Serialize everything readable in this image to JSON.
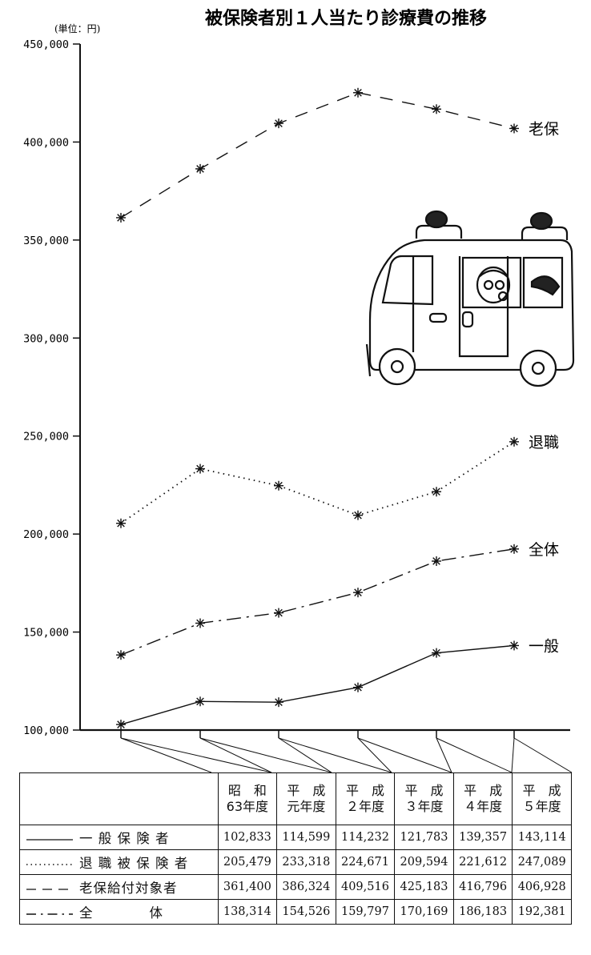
{
  "chart_data": {
    "type": "line",
    "title": "被保険者別１人当たり診療費の推移",
    "unit": "(単位：円)",
    "categories": [
      "昭　和\n63年度",
      "平　成\n元年度",
      "平　成\n２年度",
      "平　成\n３年度",
      "平　成\n４年度",
      "平　成\n５年度"
    ],
    "ylim": [
      100000,
      450000
    ],
    "yticks": [
      "100,000",
      "150,000",
      "200,000",
      "250,000",
      "300,000",
      "350,000",
      "400,000",
      "450,000"
    ],
    "series": [
      {
        "name": "一般",
        "table_name": "一 般 保 険 者",
        "style": "solid",
        "values": [
          102833,
          114599,
          114232,
          121783,
          139357,
          143114
        ],
        "labels": [
          "102,833",
          "114,599",
          "114,232",
          "121,783",
          "139,357",
          "143,114"
        ]
      },
      {
        "name": "退職",
        "table_name": "退 職 被 保 険 者",
        "style": "dotted",
        "values": [
          205479,
          233318,
          224671,
          209594,
          221612,
          247089
        ],
        "labels": [
          "205,479",
          "233,318",
          "224,671",
          "209,594",
          "221,612",
          "247,089"
        ]
      },
      {
        "name": "老保",
        "table_name": "老保給付対象者",
        "style": "dashed",
        "values": [
          361400,
          386324,
          409516,
          425183,
          416796,
          406928
        ],
        "labels": [
          "361,400",
          "386,324",
          "409,516",
          "425,183",
          "416,796",
          "406,928"
        ]
      },
      {
        "name": "全体",
        "table_name": "全　　　　体",
        "style": "dashdot",
        "values": [
          138314,
          154526,
          159797,
          170169,
          186183,
          192381
        ],
        "labels": [
          "138,314",
          "154,526",
          "159,797",
          "170,169",
          "186,183",
          "192,381"
        ]
      }
    ],
    "grid": false,
    "legend": "table"
  }
}
